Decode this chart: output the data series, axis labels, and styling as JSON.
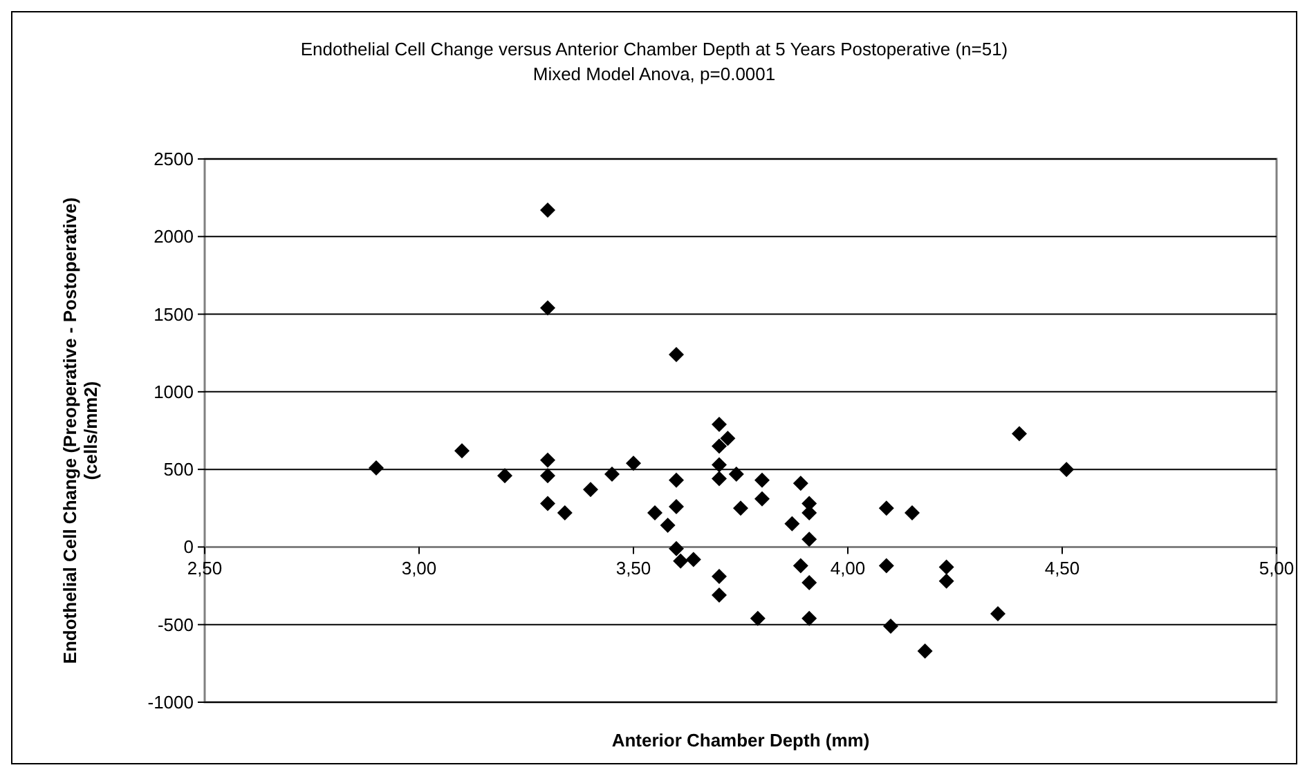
{
  "chart_data": {
    "type": "scatter",
    "title": "Endothelial Cell Change versus Anterior Chamber Depth at 5 Years Postoperative (n=51)",
    "subtitle": "Mixed Model Anova, p=0.0001",
    "xlabel": "Anterior Chamber Depth (mm)",
    "ylabel": "Endothelial Cell Change (Preoperative - Postoperative) (cells/mm2)",
    "marker": "diamond",
    "grid": "y",
    "xlim": [
      2.5,
      5
    ],
    "xticks": [
      {
        "value": 2.5,
        "label": "2,50"
      },
      {
        "value": 3,
        "label": "3,00"
      },
      {
        "value": 3.5,
        "label": "3,50"
      },
      {
        "value": 4,
        "label": "4,00"
      },
      {
        "value": 4.5,
        "label": "4,50"
      },
      {
        "value": 5,
        "label": "5,00"
      }
    ],
    "ylim": [
      -1000,
      2500
    ],
    "yticks": [
      -1000,
      -500,
      0,
      500,
      1000,
      1500,
      2000,
      2500
    ],
    "series": [
      {
        "color": "#000000",
        "x": [
          2.9,
          3.1,
          3.2,
          3.3,
          3.3,
          3.3,
          3.3,
          3.3,
          3.34,
          3.4,
          3.45,
          3.5,
          3.55,
          3.58,
          3.6,
          3.6,
          3.6,
          3.6,
          3.61,
          3.64,
          3.7,
          3.7,
          3.7,
          3.7,
          3.7,
          3.7,
          3.72,
          3.74,
          3.75,
          3.8,
          3.8,
          3.79,
          3.87,
          3.89,
          3.89,
          3.91,
          3.91,
          3.91,
          3.91,
          3.91,
          4.09,
          4.09,
          4.1,
          4.15,
          4.18,
          4.23,
          4.23,
          4.35,
          4.4,
          4.51
        ],
        "values": [
          510,
          620,
          460,
          2170,
          1540,
          560,
          460,
          280,
          220,
          370,
          470,
          540,
          220,
          140,
          1240,
          430,
          260,
          -10,
          -90,
          -80,
          790,
          650,
          530,
          440,
          -190,
          -310,
          700,
          470,
          250,
          430,
          310,
          -460,
          150,
          410,
          -120,
          280,
          220,
          50,
          -230,
          -460,
          250,
          -120,
          -510,
          220,
          -670,
          -130,
          -220,
          -430,
          730,
          500
        ]
      }
    ]
  }
}
